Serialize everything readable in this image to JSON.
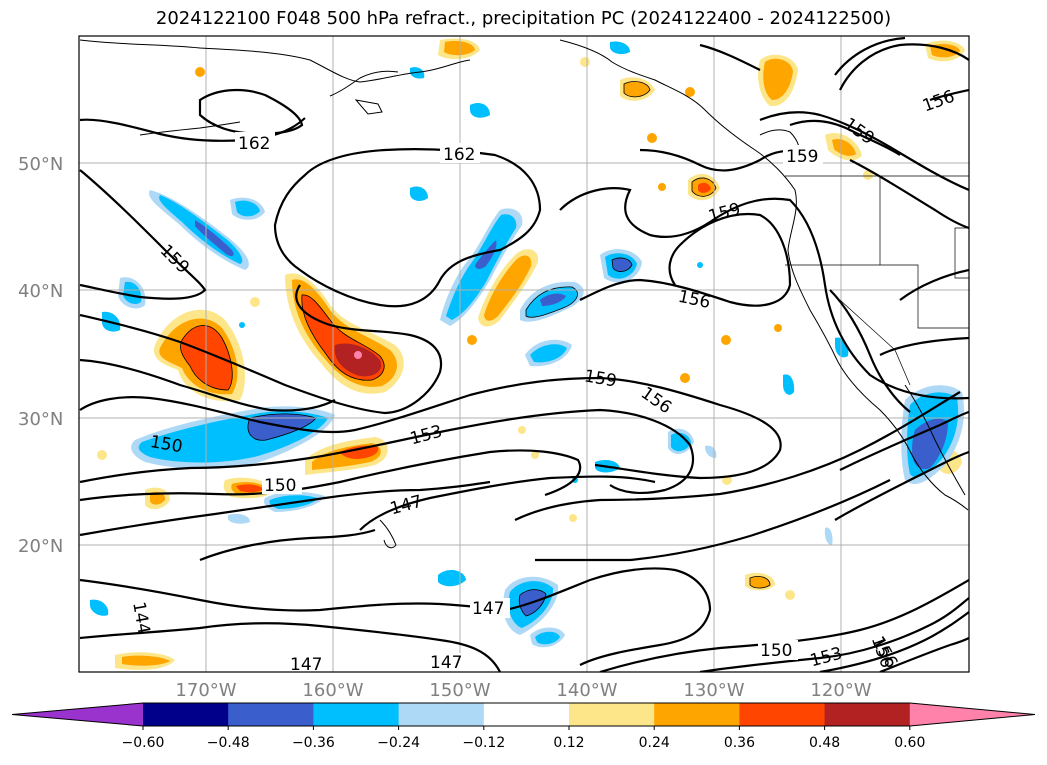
{
  "title": "2024122100 F048 500 hPa refract., precipitation PC (2024122400 - 2024122500)",
  "lat_ticks": [
    "50°N",
    "40°N",
    "30°N",
    "20°N"
  ],
  "lon_ticks": [
    "170°W",
    "160°W",
    "150°W",
    "140°W",
    "130°W",
    "120°W"
  ],
  "contour_labels": [
    "162",
    "162",
    "159",
    "159",
    "159",
    "159",
    "156",
    "156",
    "156",
    "159",
    "156",
    "150",
    "153",
    "150",
    "147",
    "147",
    "147",
    "147",
    "144",
    "150",
    "153",
    "156"
  ],
  "colorbar": {
    "ticks": [
      "−0.60",
      "−0.48",
      "−0.36",
      "−0.24",
      "−0.12",
      "0.12",
      "0.24",
      "0.36",
      "0.48",
      "0.60"
    ],
    "colors": [
      "#9a32cd",
      "#00008b",
      "#3a5fcd",
      "#00bfff",
      "#add8f6",
      "#ffffff",
      "#fde68a",
      "#ffa500",
      "#ff4500",
      "#b22222",
      "#ff82ab"
    ]
  }
}
